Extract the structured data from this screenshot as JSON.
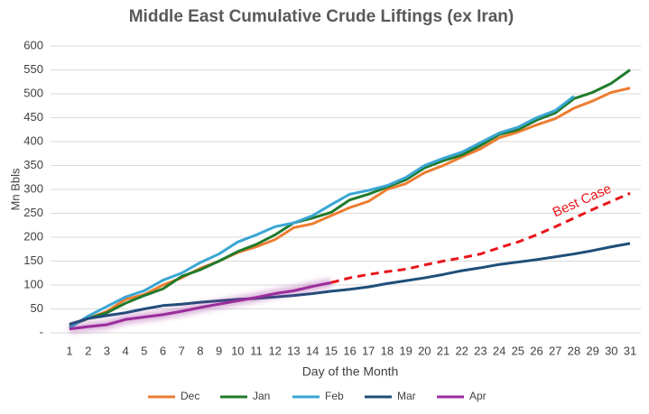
{
  "chart_data": {
    "type": "line",
    "title": "Middle East Cumulative Crude Liftings (ex Iran)",
    "y_label": "Mn Bbls",
    "x_label": "Day of the Month",
    "categories": [
      1,
      2,
      3,
      4,
      5,
      6,
      7,
      8,
      9,
      10,
      11,
      12,
      13,
      14,
      15,
      16,
      17,
      18,
      19,
      20,
      21,
      22,
      23,
      24,
      25,
      26,
      27,
      28,
      29,
      30,
      31
    ],
    "ylim": [
      0,
      600
    ],
    "yticks": [
      {
        "value": 0,
        "label": "-"
      },
      50,
      100,
      150,
      200,
      250,
      300,
      350,
      400,
      450,
      500,
      550,
      600
    ],
    "grid": true,
    "legend": "bottom",
    "series": [
      {
        "name": "Dec",
        "color": "#ed7d31",
        "values": [
          15,
          30,
          45,
          70,
          80,
          100,
          115,
          135,
          150,
          168,
          180,
          195,
          220,
          228,
          245,
          262,
          275,
          300,
          312,
          335,
          350,
          368,
          385,
          408,
          420,
          435,
          448,
          470,
          485,
          503,
          512
        ]
      },
      {
        "name": "Jan",
        "color": "#217a2b",
        "values": [
          15,
          30,
          42,
          62,
          78,
          92,
          118,
          132,
          150,
          170,
          185,
          205,
          230,
          240,
          252,
          278,
          290,
          305,
          320,
          345,
          360,
          372,
          392,
          415,
          425,
          445,
          460,
          490,
          503,
          522,
          550
        ]
      },
      {
        "name": "Feb",
        "color": "#3aa6d4",
        "values": [
          10,
          35,
          55,
          75,
          88,
          110,
          125,
          147,
          165,
          190,
          205,
          222,
          230,
          245,
          268,
          290,
          298,
          308,
          325,
          350,
          365,
          378,
          398,
          418,
          430,
          450,
          465,
          495,
          null,
          null,
          null
        ]
      },
      {
        "name": "Mar",
        "color": "#1f4e79",
        "values": [
          18,
          30,
          36,
          42,
          50,
          57,
          60,
          64,
          67,
          70,
          72,
          75,
          78,
          82,
          87,
          91,
          96,
          103,
          109,
          115,
          122,
          130,
          136,
          143,
          148,
          153,
          159,
          165,
          172,
          180,
          187
        ]
      },
      {
        "name": "Apr",
        "color": "#9b2d9b",
        "glow": true,
        "values": [
          8,
          13,
          17,
          28,
          33,
          38,
          45,
          53,
          60,
          67,
          74,
          82,
          88,
          97,
          105,
          null,
          null,
          null,
          null,
          null,
          null,
          null,
          null,
          null,
          null,
          null,
          null,
          null,
          null,
          null,
          null
        ]
      }
    ],
    "projection": {
      "name": "Best Case",
      "color": "#e8161b",
      "dashed": true,
      "values": [
        null,
        null,
        null,
        null,
        null,
        null,
        null,
        null,
        null,
        null,
        null,
        null,
        null,
        null,
        105,
        115,
        122,
        128,
        133,
        142,
        150,
        157,
        165,
        178,
        190,
        205,
        222,
        240,
        258,
        275,
        292
      ]
    }
  }
}
